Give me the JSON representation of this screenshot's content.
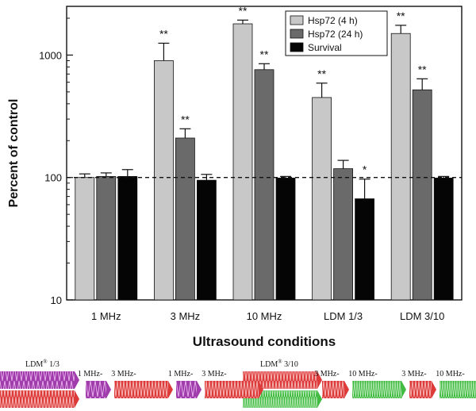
{
  "chart_data": {
    "type": "bar",
    "title": "",
    "xlabel": "Ultrasound conditions",
    "ylabel": "Percent of control",
    "yscale": "log",
    "ylim": [
      10,
      2500
    ],
    "yticks": [
      10,
      100,
      1000
    ],
    "ytick_labels": [
      "10",
      "100",
      "1000"
    ],
    "categories": [
      "1 MHz",
      "3 MHz",
      "10 MHz",
      "LDM 1/3",
      "LDM 3/10"
    ],
    "reference_line": 100,
    "legend_position": "top-right",
    "series": [
      {
        "name": "Hsp72 (4 h)",
        "color": "#c8c8c8",
        "values": [
          100,
          900,
          1800,
          450,
          1500
        ],
        "errors": [
          7,
          350,
          130,
          140,
          250
        ],
        "significance": [
          "",
          "**",
          "**",
          "**",
          "**"
        ]
      },
      {
        "name": "Hsp72 (24 h)",
        "color": "#6a6a6a",
        "values": [
          102,
          210,
          760,
          118,
          520
        ],
        "errors": [
          7,
          40,
          90,
          20,
          120
        ],
        "significance": [
          "",
          "**",
          "**",
          "",
          "**"
        ]
      },
      {
        "name": "Survival",
        "color": "#050505",
        "values": [
          102,
          95,
          99,
          67,
          99
        ],
        "errors": [
          14,
          11,
          3,
          30,
          3
        ],
        "significance": [
          "",
          "",
          "",
          "*",
          ""
        ]
      }
    ]
  },
  "schematics": [
    {
      "label_main": "LDM",
      "label_sup": "®",
      "label_rest": " 1/3",
      "top_label": "LDM® 1/3",
      "colors": {
        "slow": "#a03cab",
        "fast": "#dd3a3a"
      },
      "steps": [
        {
          "label": "1 MHz-",
          "color": "slow"
        },
        {
          "label": "3 MHz-",
          "color": "fast"
        },
        {
          "label": "1 MHz-",
          "color": "slow"
        },
        {
          "label": "3 MHz-",
          "color": "fast"
        }
      ]
    },
    {
      "label_main": "LDM",
      "label_sup": "®",
      "label_rest": " 3/10",
      "top_label": "LDM® 3/10",
      "colors": {
        "slow": "#dd3a3a",
        "fast": "#43bb43"
      },
      "steps": [
        {
          "label": "3 MHz-",
          "color": "slow"
        },
        {
          "label": "10 MHz-",
          "color": "fast"
        },
        {
          "label": "3 MHz-",
          "color": "slow"
        },
        {
          "label": "10 MHz-",
          "color": "fast"
        }
      ]
    }
  ]
}
